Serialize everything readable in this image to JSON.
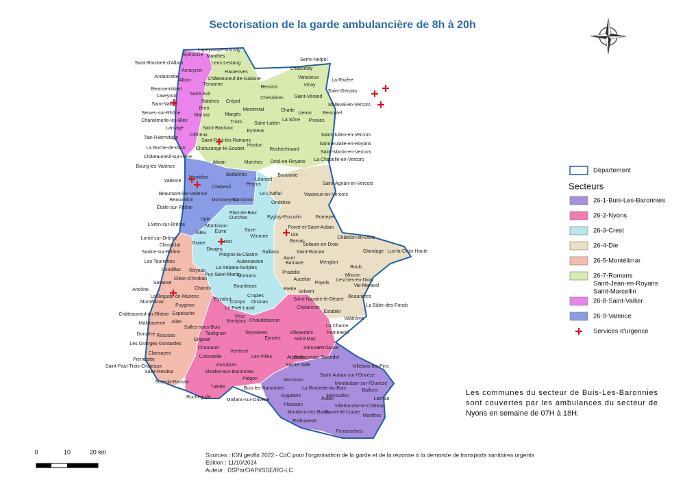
{
  "title": "Sectorisation de la garde ambulancière de 8h à 20h",
  "legend": {
    "boundary": "Département",
    "sectors_title": "Secteurs",
    "items": [
      {
        "lines": [
          "26-1-Buis-Les-Baronnies"
        ],
        "color": "#a98ee0"
      },
      {
        "lines": [
          "26-2-Nyons"
        ],
        "color": "#f07cb3"
      },
      {
        "lines": [
          "26-3-Crest"
        ],
        "color": "#b7e7ef"
      },
      {
        "lines": [
          "26-4-Die"
        ],
        "color": "#eadfc4"
      },
      {
        "lines": [
          "26-5-Montélimar"
        ],
        "color": "#f3bcad"
      },
      {
        "lines": [
          "26-7-Romans",
          "Saint-Jean-en-Royans",
          "Saint-Marcellin"
        ],
        "color": "#d8eaae"
      },
      {
        "lines": [
          "26-8-Saint-Vallier"
        ],
        "color": "#ea84ea"
      },
      {
        "lines": [
          "26-9-Valence"
        ],
        "color": "#8a9ce6"
      }
    ],
    "emergency": "Services d'urgence"
  },
  "note": [
    "Les communes du secteur de Buis-Les-Baronnies",
    "sont couvertes par les ambulances du secteur de",
    "Nyons en semaine de 07H à 18H."
  ],
  "sources": [
    "Sources : IGN geofla 2022 - CdC pour l'organisation de la garde et de la réponse à la demande de transports sanitaires urgents",
    "Edition : 11/10/2024",
    "Auteur : DSPar/DAPI/SSE/RG-LC"
  ],
  "scale": [
    "0",
    "10",
    "20 km"
  ],
  "labels": [
    "Lapeyrouse-Mornay",
    "Épinouze",
    "Manthes",
    "Saint-Rambert-d'Albon",
    "Lens-Lestang",
    "Anneyron",
    "Hauterives",
    "Andancette",
    "Albon",
    "Tersanne",
    "Châteauneuf-de-Galaure",
    "Chasselay",
    "Serre-Nerpol",
    "Varacieux",
    "La Rivière",
    "Vinay",
    "Bessins",
    "Saint-Gervais",
    "Beausemblant",
    "Laveyron",
    "Saint-Avit",
    "Ratières",
    "Crépol",
    "Chevrières",
    "Saint-Vérand",
    "Saint-Vallier",
    "Malleval-en-Vercors",
    "Serves-sur-Rhône",
    "Bren",
    "Montmiral",
    "Chatte",
    "Izeron",
    "Rencurel",
    "Chantemerle-les-Blés",
    "Marsaz",
    "Margès",
    "La Sône",
    "Larnage",
    "Triors",
    "Saint-Lattier",
    "Presles",
    "Saint-Bardoux",
    "Eymeux",
    "Tain-l'Hermitage",
    "Clérieux",
    "Saint-Julien-en-Vercors",
    "Saint-Paul-lès-Romans",
    "Saint-Eulalie-en-Royans",
    "Hostun",
    "La Roche-de-Glun",
    "Chatuzange-le-Goubet",
    "Rochechinard",
    "Saint-Martin-en-Vercors",
    "Châteauneuf-sur-Isère",
    "Alixan",
    "Marches",
    "Oriol-en-Royans",
    "La Chapelle-en-Vercors",
    "Bourg-lès-Valence",
    "Barbières",
    "Bouvante",
    "Montélier",
    "Peyrus",
    "Léoncel",
    "Valence",
    "Saint-Agnan-en-Vercors",
    "Chabeuil",
    "Le Chaffal",
    "Beaumont-lès-Valence",
    "Beauvallon",
    "Montmeyran",
    "Combovin",
    "Vassieux-en-Vercors",
    "Omblèze",
    "Étoile-sur-Rhône",
    "Plan-de-Baix",
    "Eygluy-Escoulin",
    "Romeyer",
    "Upie",
    "Ourches",
    "Livron-sur-Drôme",
    "Montoison",
    "Suze",
    "Allex",
    "Eurre",
    "Barsac",
    "Ponet-et-Saint-Auban",
    "Die",
    "Châtillon-en-Diois",
    "Loriol-sur-Drôme",
    "Véronne",
    "Solaure-en-Diois",
    "Cliousclat",
    "Grane",
    "Crest",
    "Saint-Roman",
    "Glandage",
    "Saulce-sur-Rhône",
    "Divajeu",
    "Piégros-la-Clastre",
    "Saillans",
    "Aurel",
    "Lus-la-Croix-Haute",
    "Les Tourrettes",
    "Aubenasson",
    "Barnave",
    "Menglon",
    "Condillac",
    "Roynac",
    "La Répara-Auriples",
    "Boulc",
    "Pradelle",
    "Miscon",
    "Puy-Saint-Martin",
    "Mornans",
    "Cléon-d'Andran",
    "Aucelon",
    "Lesches-en-Diois",
    "Poyols",
    "Val-Maravel",
    "Savasse",
    "Charols",
    "Bourdeaux",
    "Brette",
    "Ancône",
    "Volvent",
    "Beaurières",
    "Crupies",
    "La Bégude-de-Mazenc",
    "Eyzahut",
    "Saint-Nazaire-le-Désert",
    "Montélimar",
    "Comps",
    "Orcinas",
    "La Bâtie-des-Fonds",
    "Puygiron",
    "Chalancon",
    "Espeluche",
    "Le Poët-Laval",
    "Châteauneuf-du-Rhône",
    "Establet",
    "Allan",
    "Vesc",
    "Valdrôme",
    "Malataverne",
    "Montjoux",
    "Chaudebonne",
    "La Charce",
    "Salles-sous-Bois",
    "Pommerol",
    "Donzère",
    "Roussas",
    "Taulignan",
    "Teyssières",
    "Villeperdrix",
    "Eyroles",
    "Grignan",
    "Saint-May",
    "Les Granges-Gontardes",
    "Clansayes",
    "Chamaret",
    "Venterol",
    "Sahune",
    "Verclause",
    "Pierrelatte",
    "Colonzelle",
    "Les Pilles",
    "Saint-Paul-Trois-Châteaux",
    "Arpavon",
    "Bellecombe-Tarendol",
    "Vinsobres",
    "Villebois-les-Pins",
    "Saint-Restitut",
    "Mirabel-aux-Baronnies",
    "Saint-Auban-sur-l'Ouvèze",
    "Suze-la-Rousse",
    "Piégon",
    "Vercoiran",
    "Sainte-Jalle",
    "Montauban-sur-l'Ouvèze",
    "Tulette",
    "Buis-les-Baronnies",
    "La Rochette-du-Buis",
    "Ballons",
    "Rochegude",
    "Eygaliers",
    "Mévouillon",
    "Lachau",
    "Mollans-sur-Ouvèze",
    "Plaisians",
    "Aulan",
    "Villefranche-le-Château",
    "Montbrun-les-Bains",
    "Barret-de-Lioure",
    "Montfroc",
    "Reilhanette",
    "Ferrassières"
  ]
}
